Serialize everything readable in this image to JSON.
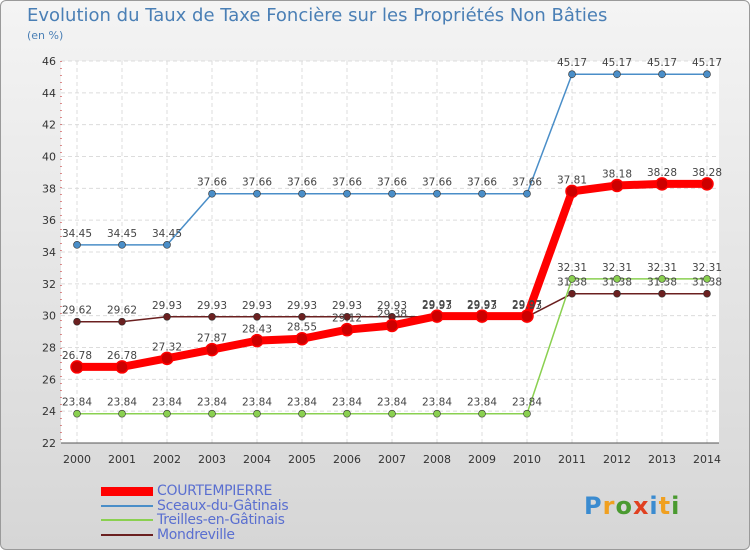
{
  "title": "Evolution du Taux de Taxe Foncière sur les Propriétés Non Bâties",
  "subtitle": "(en %)",
  "logo": {
    "text": "Proxiti",
    "colors": [
      "#3a8bd0",
      "#f0a020",
      "#4a9a30",
      "#e04020"
    ]
  },
  "chart_data": {
    "type": "line",
    "title": "Evolution du Taux de Taxe Foncière sur les Propriétés Non Bâties",
    "ylabel": "(en %)",
    "xlabel": "",
    "ylim": [
      22,
      46
    ],
    "yticks": [
      22,
      24,
      26,
      28,
      30,
      32,
      34,
      36,
      38,
      40,
      42,
      44,
      46
    ],
    "x": [
      "2000",
      "2001",
      "2002",
      "2003",
      "2004",
      "2005",
      "2006",
      "2007",
      "2008",
      "2009",
      "2010",
      "2011",
      "2012",
      "2013",
      "2014"
    ],
    "legend_position": "bottom-left",
    "series": [
      {
        "name": "Sceaux-du-Gâtinais",
        "color": "#4a8ec8",
        "values": [
          34.45,
          34.45,
          34.45,
          37.66,
          37.66,
          37.66,
          37.66,
          37.66,
          37.66,
          37.66,
          37.66,
          45.17,
          45.17,
          45.17,
          45.17
        ],
        "labels": [
          "34.45",
          "34.45",
          "34.45",
          "37.66",
          "37.66",
          "37.66",
          "37.66",
          "37.66",
          "37.66",
          "37.66",
          "37.66",
          "45.17",
          "45.17",
          "45.17",
          "45.17"
        ]
      },
      {
        "name": "Mondreville",
        "color": "#6b2020",
        "values": [
          29.62,
          29.62,
          29.93,
          29.93,
          29.93,
          29.93,
          29.93,
          29.93,
          29.93,
          29.93,
          29.93,
          31.38,
          31.38,
          31.38,
          31.38
        ],
        "labels": [
          "29.62",
          "29.62",
          "29.93",
          "29.93",
          "29.93",
          "29.93",
          "29.93",
          "29.93",
          "29.93",
          "29.93",
          "29.93",
          "31.38",
          "31.38",
          "31.38",
          "31.38"
        ]
      },
      {
        "name": "Treilles-en-Gâtinais",
        "color": "#8ad050",
        "values": [
          23.84,
          23.84,
          23.84,
          23.84,
          23.84,
          23.84,
          23.84,
          23.84,
          23.84,
          23.84,
          23.84,
          32.31,
          32.31,
          32.31,
          32.31
        ],
        "labels": [
          "23.84",
          "23.84",
          "23.84",
          "23.84",
          "23.84",
          "23.84",
          "23.84",
          "23.84",
          "23.84",
          "23.84",
          "23.84",
          "32.31",
          "32.31",
          "32.31",
          "32.31"
        ]
      },
      {
        "name": "COURTEMPIERRE",
        "color": "#ff0000",
        "values": [
          26.78,
          26.78,
          27.32,
          27.87,
          28.43,
          28.55,
          29.12,
          29.38,
          29.97,
          29.97,
          29.97,
          37.81,
          38.18,
          38.28,
          38.28
        ],
        "labels": [
          "26.78",
          "26.78",
          "27.32",
          "27.87",
          "28.43",
          "28.55",
          "29.12",
          "29.38",
          "29.97",
          "29.97",
          "29.97",
          "37.81",
          "38.18",
          "38.28",
          "38.28"
        ]
      }
    ],
    "legend": [
      {
        "name": "COURTEMPIERRE",
        "color": "#ff0000"
      },
      {
        "name": "Sceaux-du-Gâtinais",
        "color": "#4a8ec8"
      },
      {
        "name": "Treilles-en-Gâtinais",
        "color": "#8ad050"
      },
      {
        "name": "Mondreville",
        "color": "#6b2020"
      }
    ]
  }
}
